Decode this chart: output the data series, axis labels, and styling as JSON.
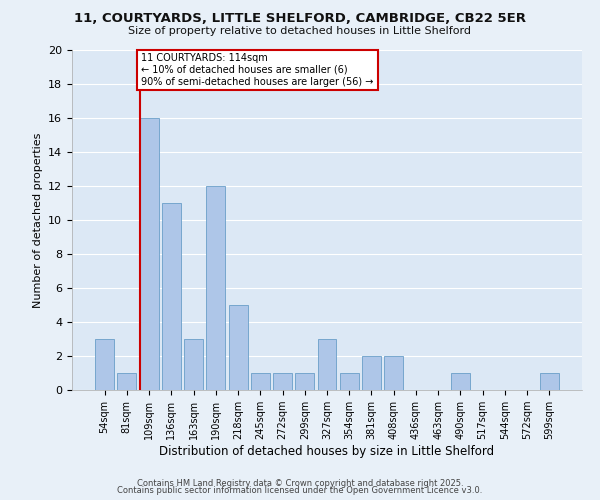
{
  "title_line1": "11, COURTYARDS, LITTLE SHELFORD, CAMBRIDGE, CB22 5ER",
  "title_line2": "Size of property relative to detached houses in Little Shelford",
  "xlabel": "Distribution of detached houses by size in Little Shelford",
  "ylabel": "Number of detached properties",
  "categories": [
    "54sqm",
    "81sqm",
    "109sqm",
    "136sqm",
    "163sqm",
    "190sqm",
    "218sqm",
    "245sqm",
    "272sqm",
    "299sqm",
    "327sqm",
    "354sqm",
    "381sqm",
    "408sqm",
    "436sqm",
    "463sqm",
    "490sqm",
    "517sqm",
    "544sqm",
    "572sqm",
    "599sqm"
  ],
  "values": [
    3,
    1,
    16,
    11,
    3,
    12,
    5,
    1,
    1,
    1,
    3,
    1,
    2,
    2,
    0,
    0,
    1,
    0,
    0,
    0,
    1
  ],
  "bar_color": "#aec6e8",
  "bar_edge_color": "#6a9fc8",
  "background_color": "#dce8f5",
  "fig_background_color": "#e8f0f8",
  "grid_color": "#ffffff",
  "annotation_box_color": "#cc0000",
  "vline_color": "#cc0000",
  "vline_x_index": 2,
  "annotation_text": "11 COURTYARDS: 114sqm\n← 10% of detached houses are smaller (6)\n90% of semi-detached houses are larger (56) →",
  "ylim": [
    0,
    20
  ],
  "yticks": [
    0,
    2,
    4,
    6,
    8,
    10,
    12,
    14,
    16,
    18,
    20
  ],
  "footnote_line1": "Contains HM Land Registry data © Crown copyright and database right 2025.",
  "footnote_line2": "Contains public sector information licensed under the Open Government Licence v3.0."
}
